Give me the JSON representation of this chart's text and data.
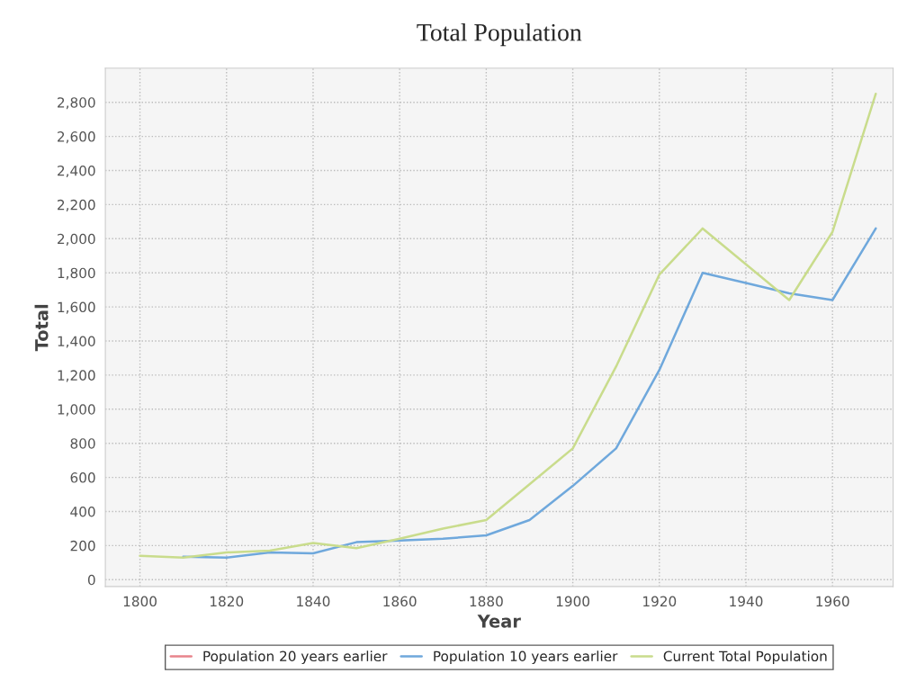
{
  "chart_data": {
    "type": "line",
    "title": "Total Population",
    "xlabel": "Year",
    "ylabel": "Total",
    "x": [
      1800,
      1810,
      1820,
      1830,
      1840,
      1850,
      1860,
      1870,
      1880,
      1890,
      1900,
      1910,
      1920,
      1930,
      1940,
      1950,
      1960,
      1970
    ],
    "series": [
      {
        "name": "Population 20 years earlier",
        "color": "#e8848c",
        "values": [
          null,
          null,
          null,
          null,
          null,
          null,
          null,
          null,
          null,
          null,
          null,
          null,
          null,
          null,
          null,
          null,
          null,
          null
        ]
      },
      {
        "name": "Population 10 years earlier",
        "color": "#6fa8dc",
        "values": [
          null,
          135,
          130,
          160,
          155,
          220,
          230,
          240,
          260,
          350,
          550,
          770,
          1230,
          1800,
          1740,
          1680,
          1640,
          2060
        ]
      },
      {
        "name": "Current Total Population",
        "color": "#c9dc8c",
        "values": [
          140,
          130,
          160,
          170,
          215,
          185,
          240,
          300,
          350,
          560,
          770,
          1250,
          1790,
          2060,
          1850,
          1640,
          2040,
          2850
        ]
      }
    ],
    "xlim": [
      1792,
      1974
    ],
    "xticks": [
      1800,
      1820,
      1840,
      1860,
      1880,
      1900,
      1920,
      1940,
      1960
    ],
    "ylim": [
      -40,
      3000
    ],
    "yticks": [
      {
        "value": 0,
        "label": "0"
      },
      {
        "value": 200,
        "label": "200"
      },
      {
        "value": 400,
        "label": "400"
      },
      {
        "value": 600,
        "label": "600"
      },
      {
        "value": 800,
        "label": "800"
      },
      {
        "value": 1000,
        "label": "1,000"
      },
      {
        "value": 1200,
        "label": "1,200"
      },
      {
        "value": 1400,
        "label": "1,400"
      },
      {
        "value": 1600,
        "label": "1,600"
      },
      {
        "value": 1800,
        "label": "1,800"
      },
      {
        "value": 2000,
        "label": "2,000"
      },
      {
        "value": 2200,
        "label": "2,200"
      },
      {
        "value": 2400,
        "label": "2,400"
      },
      {
        "value": 2600,
        "label": "2,600"
      },
      {
        "value": 2800,
        "label": "2,800"
      }
    ],
    "grid": true,
    "legend": "bottom",
    "line_style": "solid"
  }
}
